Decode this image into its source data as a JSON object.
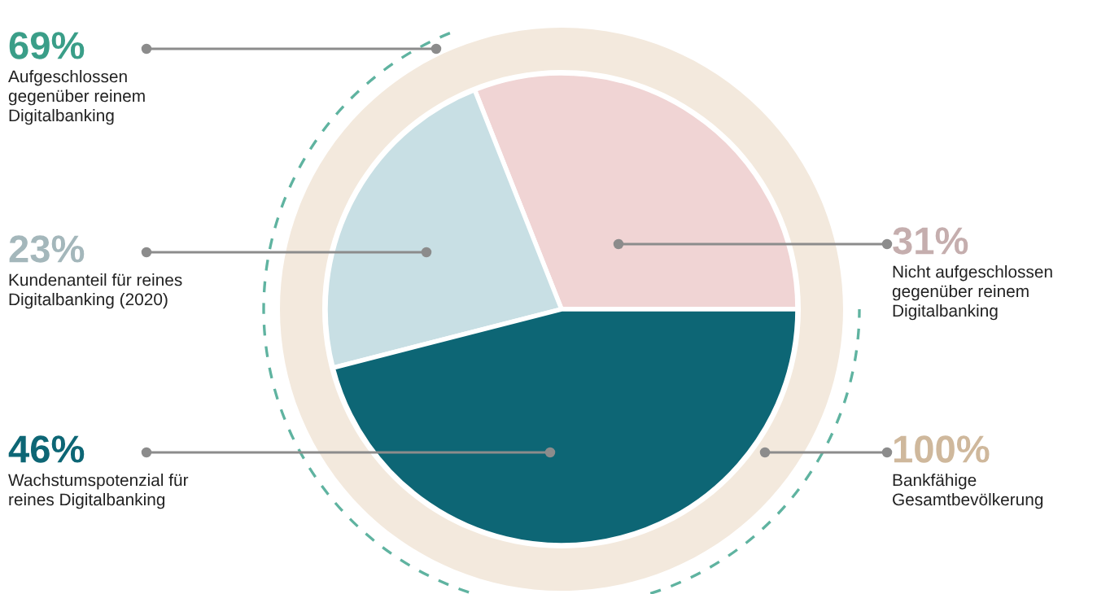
{
  "chart_data": {
    "type": "pie",
    "categories": [
      "Nicht aufgeschlossen\ngegenüber reinem\nDigitalbanking",
      "Kundenanteil für reines\nDigitalbanking (2020)",
      "Wachstumspotenzial für\nreines Digitalbanking"
    ],
    "values": [
      31,
      23,
      46
    ],
    "value_labels": [
      "31%",
      "23%",
      "46%"
    ],
    "colors": [
      "#f0d4d4",
      "#c8dfe4",
      "#0d6675"
    ],
    "annotations": [
      "69%",
      "Aufgeschlossen\ngegenüber reinem\nDigitalbanking",
      "100%",
      "Bankfähige\nGesamtbevölkerung"
    ]
  }
}
